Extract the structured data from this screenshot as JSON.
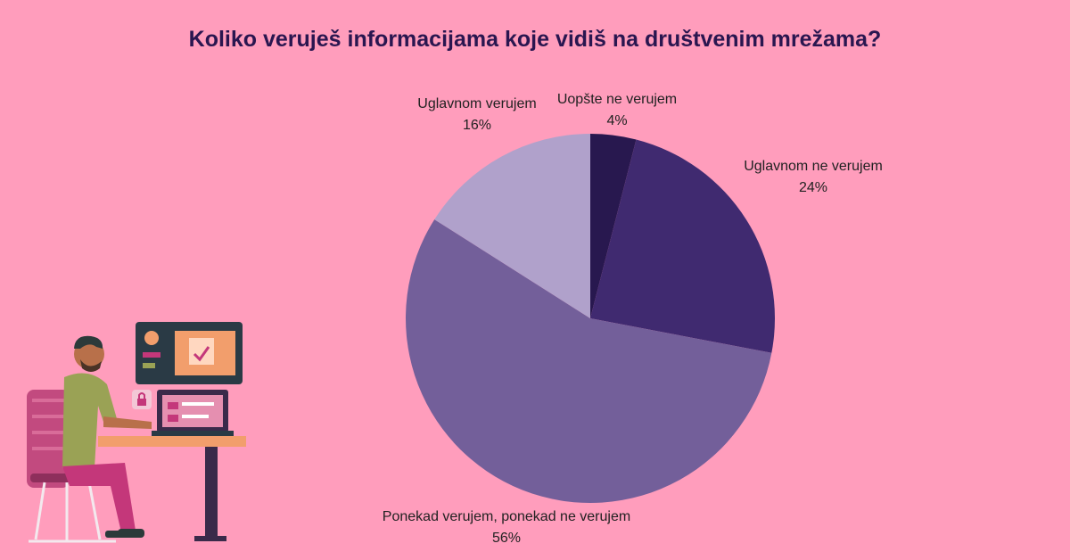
{
  "chart_data": {
    "type": "pie",
    "title": "Koliko veruješ informacijama koje vidiš na društvenim mrežama?",
    "slices": [
      {
        "label": "Uopšte ne verujem",
        "value": 4,
        "value_label": "4%",
        "color": "#28184f"
      },
      {
        "label": "Uglavnom ne verujem",
        "value": 24,
        "value_label": "24%",
        "color": "#402a70"
      },
      {
        "label": "Ponekad verujem, ponekad ne verujem",
        "value": 56,
        "value_label": "56%",
        "color": "#735f9a"
      },
      {
        "label": "Uglavnom verujem",
        "value": 16,
        "value_label": "16%",
        "color": "#b0a1cb"
      }
    ],
    "start": "top",
    "direction": "clockwise"
  },
  "background_color": "#ff9dbc",
  "illustration": "person-at-computer-desk"
}
